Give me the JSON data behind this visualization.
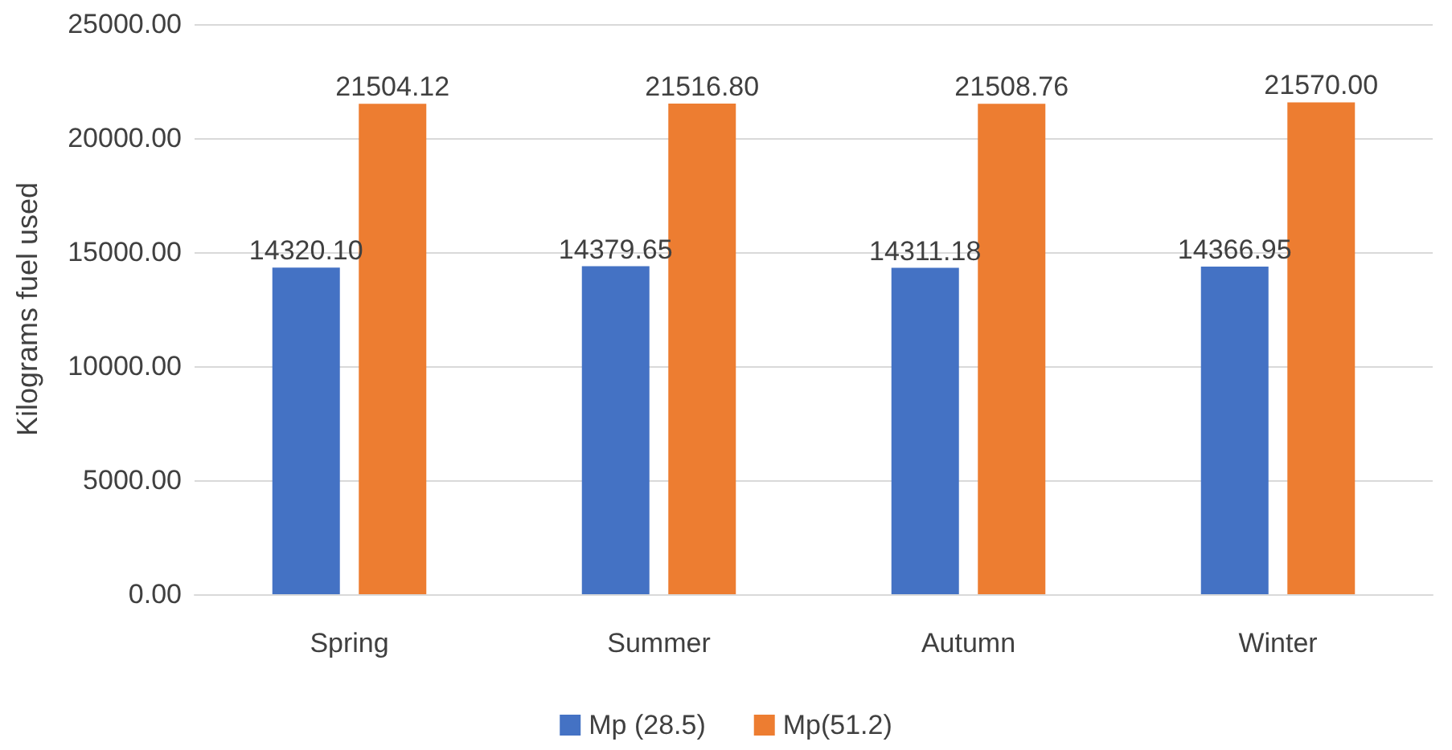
{
  "chart_data": {
    "type": "bar",
    "ylabel": "Kilograms fuel used",
    "categories": [
      "Spring",
      "Summer",
      "Autumn",
      "Winter"
    ],
    "series": [
      {
        "name": "Mp (28.5)",
        "color": "#4472c4",
        "values": [
          14320.1,
          14379.65,
          14311.18,
          14366.95
        ],
        "value_labels": [
          "14320.10",
          "14379.65",
          "14311.18",
          "14366.95"
        ]
      },
      {
        "name": "Mp(51.2)",
        "color": "#ed7d31",
        "values": [
          21504.12,
          21516.8,
          21508.76,
          21570.0
        ],
        "value_labels": [
          "21504.12",
          "21516.80",
          "21508.76",
          "21570.00"
        ]
      }
    ],
    "ylim": [
      0,
      25000
    ],
    "yticks": [
      {
        "value": 0,
        "label": "0.00"
      },
      {
        "value": 5000,
        "label": "5000.00"
      },
      {
        "value": 10000,
        "label": "10000.00"
      },
      {
        "value": 15000,
        "label": "15000.00"
      },
      {
        "value": 20000,
        "label": "20000.00"
      },
      {
        "value": 25000,
        "label": "25000.00"
      }
    ],
    "grid": "y",
    "legend": "bottom"
  }
}
